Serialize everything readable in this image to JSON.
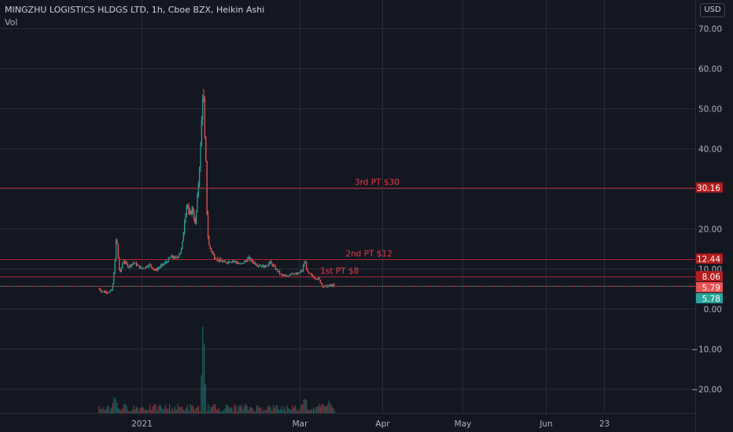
{
  "header": {
    "title": "MINGZHU LOGISTICS HLDGS LTD, 1h, Cboe BZX, Heikin Ashi",
    "subtitle": "Vol"
  },
  "currency_button": {
    "label": "USD"
  },
  "colors": {
    "background": "#131722",
    "grid": "#2a2e39",
    "up": "#26a69a",
    "down": "#ef5350",
    "annotation_line": "#b22833",
    "annotation_text": "#f23645",
    "badge_dark_red": "#b71c1c",
    "badge_light_red": "#ef5350",
    "badge_green": "#26a69a"
  },
  "chart_data": {
    "type": "candlestick",
    "style": "Heikin Ashi",
    "interval": "1h",
    "ylim": [
      -26,
      77
    ],
    "y_ticks": [
      {
        "value": 70,
        "label": "70.00"
      },
      {
        "value": 60,
        "label": "60.00"
      },
      {
        "value": 50,
        "label": "50.00"
      },
      {
        "value": 40,
        "label": "40.00"
      },
      {
        "value": 30,
        "label": "30.00"
      },
      {
        "value": 20,
        "label": "20.00"
      },
      {
        "value": 10,
        "label": "10.00"
      },
      {
        "value": 0,
        "label": "0.00"
      },
      {
        "value": -10,
        "label": "−10.00"
      },
      {
        "value": -20,
        "label": "−20.00"
      }
    ],
    "x_ticks": [
      {
        "date": "2021-01-01",
        "label": "2021"
      },
      {
        "date": "2021-03-01",
        "label": "Mar"
      },
      {
        "date": "2021-04-01",
        "label": "Apr"
      },
      {
        "date": "2021-05-01",
        "label": "May"
      },
      {
        "date": "2021-06-01",
        "label": "Jun"
      },
      {
        "date": "2021-06-23",
        "label": "23"
      }
    ],
    "x_range": [
      "2020-11-09",
      "2021-07-27"
    ],
    "grid": true,
    "price_path": [
      [
        "2020-12-16",
        5.0
      ],
      [
        "2020-12-17",
        4.4
      ],
      [
        "2020-12-18",
        4.2
      ],
      [
        "2020-12-20",
        4.3
      ],
      [
        "2020-12-21",
        4.6
      ],
      [
        "2020-12-22",
        12.0
      ],
      [
        "2020-12-22",
        18.5
      ],
      [
        "2020-12-23",
        14.5
      ],
      [
        "2020-12-23",
        10.0
      ],
      [
        "2020-12-24",
        9.0
      ],
      [
        "2020-12-25",
        12.0
      ],
      [
        "2020-12-27",
        10.5
      ],
      [
        "2020-12-29",
        11.5
      ],
      [
        "2021-01-01",
        10.0
      ],
      [
        "2021-01-04",
        11.0
      ],
      [
        "2021-01-06",
        9.5
      ],
      [
        "2021-01-08",
        10.5
      ],
      [
        "2021-01-10",
        11.5
      ],
      [
        "2021-01-12",
        13.0
      ],
      [
        "2021-01-14",
        12.5
      ],
      [
        "2021-01-16",
        15.0
      ],
      [
        "2021-01-17",
        22.0
      ],
      [
        "2021-01-18",
        27.0
      ],
      [
        "2021-01-18",
        23.0
      ],
      [
        "2021-01-20",
        25.0
      ],
      [
        "2021-01-21",
        21.0
      ],
      [
        "2021-01-22",
        29.0
      ],
      [
        "2021-01-23",
        40.0
      ],
      [
        "2021-01-24",
        57.0
      ],
      [
        "2021-01-24",
        43.0
      ],
      [
        "2021-01-25",
        36.0
      ],
      [
        "2021-01-25",
        21.0
      ],
      [
        "2021-01-26",
        16.0
      ],
      [
        "2021-01-28",
        13.0
      ],
      [
        "2021-01-30",
        12.0
      ],
      [
        "2021-02-01",
        11.5
      ],
      [
        "2021-02-04",
        12.0
      ],
      [
        "2021-02-07",
        11.0
      ],
      [
        "2021-02-10",
        12.5
      ],
      [
        "2021-02-13",
        11.0
      ],
      [
        "2021-02-16",
        10.5
      ],
      [
        "2021-02-18",
        11.5
      ],
      [
        "2021-02-20",
        10.0
      ],
      [
        "2021-02-22",
        8.5
      ],
      [
        "2021-02-24",
        8.0
      ],
      [
        "2021-02-26",
        9.0
      ],
      [
        "2021-02-28",
        8.5
      ],
      [
        "2021-03-02",
        9.5
      ],
      [
        "2021-03-03",
        12.0
      ],
      [
        "2021-03-04",
        9.0
      ],
      [
        "2021-03-06",
        8.0
      ],
      [
        "2021-03-08",
        7.5
      ],
      [
        "2021-03-09",
        6.5
      ],
      [
        "2021-03-10",
        5.5
      ],
      [
        "2021-03-11",
        5.6
      ],
      [
        "2021-03-13",
        5.8
      ],
      [
        "2021-03-14",
        5.78
      ]
    ],
    "volume_range": [
      "2020-12-16",
      "2021-03-14"
    ],
    "last_price": {
      "value": 5.78,
      "label": "5.78"
    },
    "annotations": [
      {
        "label": "3rd PT $30",
        "line_value": 30.16,
        "badge": "30.16",
        "text_date": "2021-03-30"
      },
      {
        "label": "2nd PT $12",
        "line_value": 12.44,
        "badge": "12.44",
        "text_date": "2021-03-27"
      },
      {
        "label": "1st PT $8",
        "line_value": 8.06,
        "badge": "8.06",
        "text_date": "2021-03-16"
      },
      {
        "label": "",
        "line_value": 5.79,
        "badge": "5.79",
        "text_date": ""
      }
    ]
  }
}
